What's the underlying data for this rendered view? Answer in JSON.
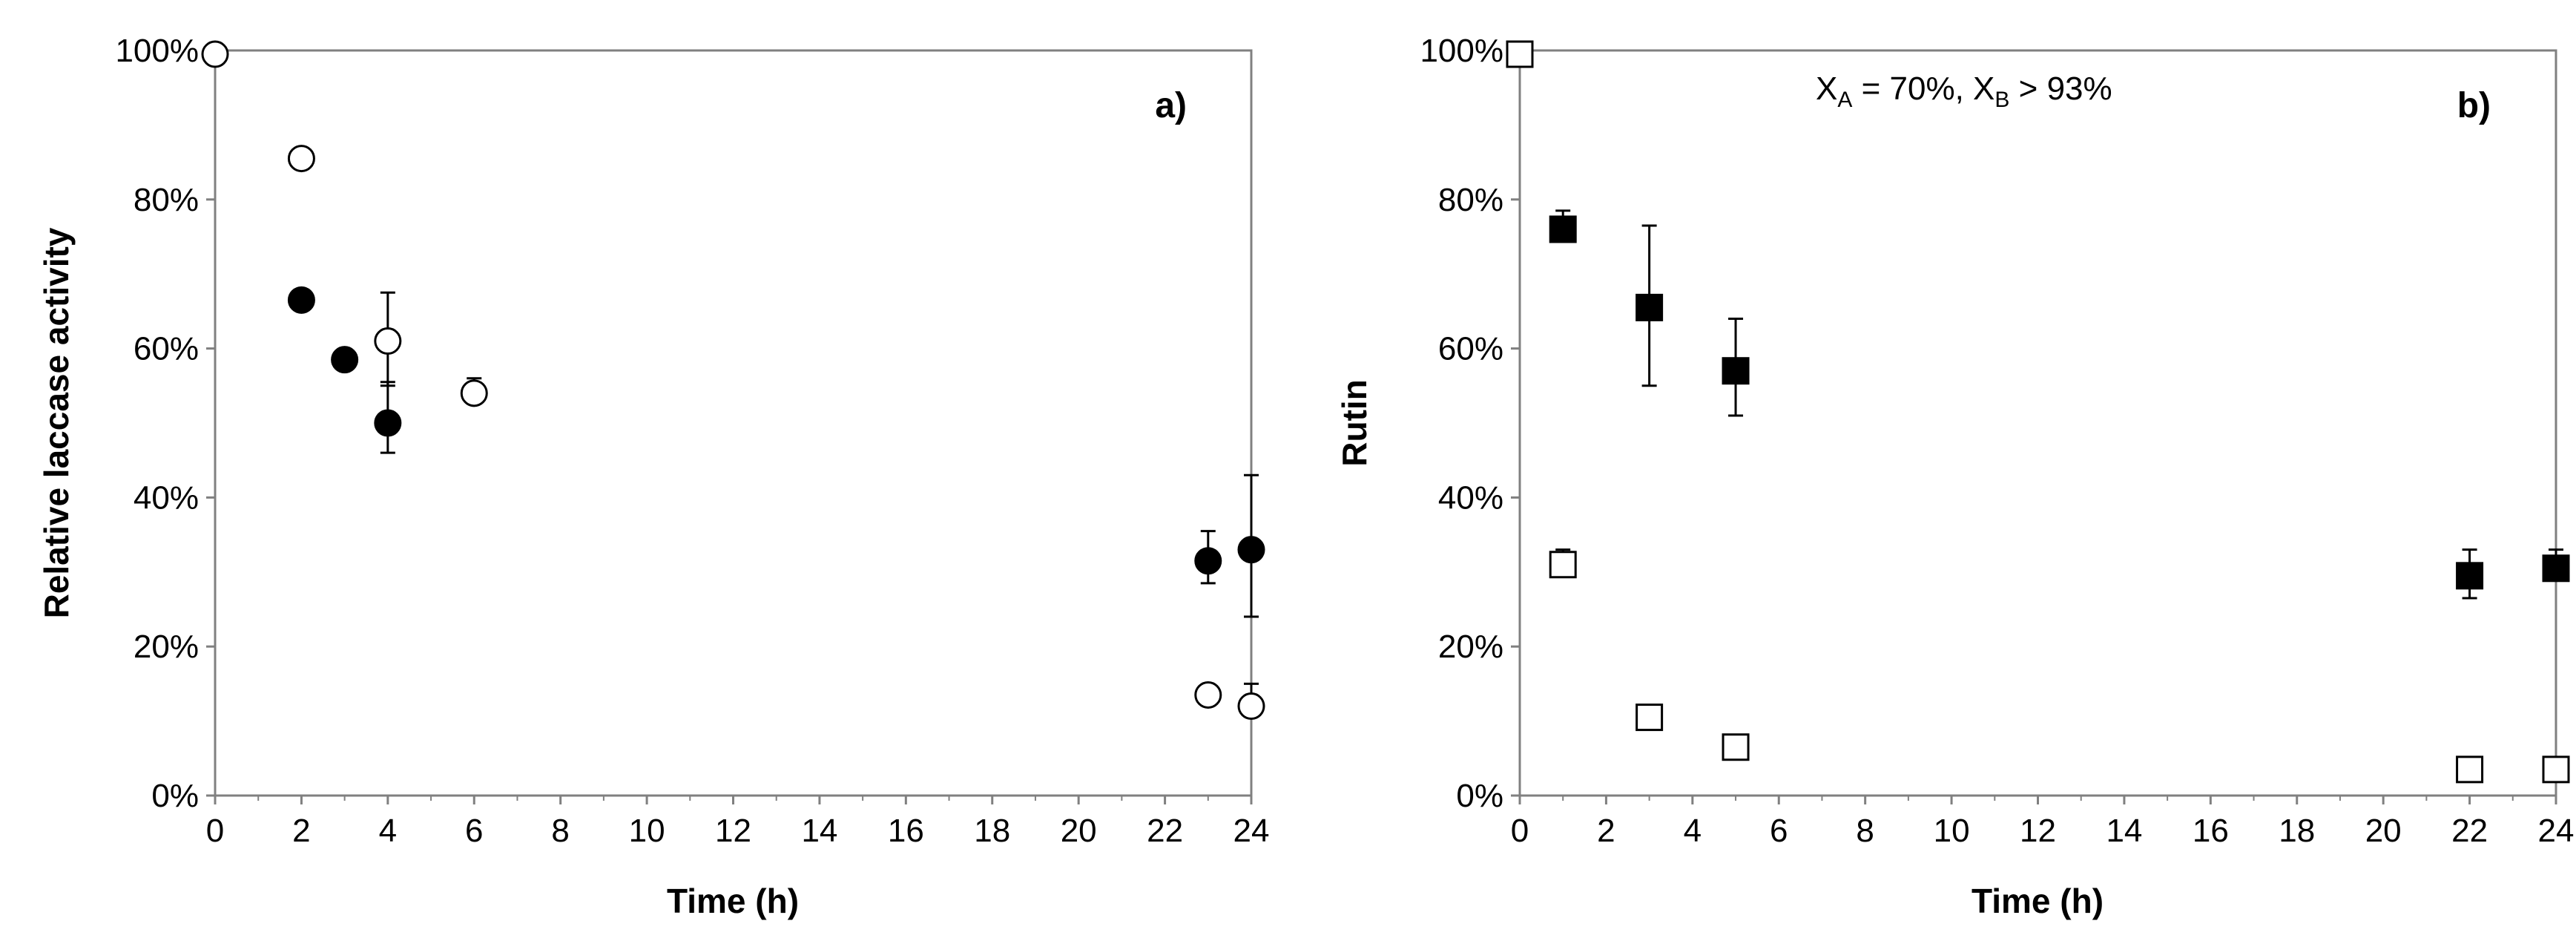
{
  "chart_data": [
    {
      "type": "scatter",
      "panel_label": "a)",
      "xlabel": "Time (h)",
      "ylabel": "Relative laccase activity",
      "xlim": [
        0,
        24
      ],
      "ylim": [
        0,
        100
      ],
      "x_ticks": [
        0,
        2,
        4,
        6,
        8,
        10,
        12,
        14,
        16,
        18,
        20,
        22,
        24
      ],
      "y_ticks": [
        0,
        20,
        40,
        60,
        80,
        100
      ],
      "y_tick_labels": [
        "0%",
        "20%",
        "40%",
        "60%",
        "80%",
        "100%"
      ],
      "grid": false,
      "series": [
        {
          "marker": "circle",
          "fill": "white",
          "points": [
            {
              "x": 0,
              "y": 99.5
            },
            {
              "x": 2,
              "y": 85.5
            },
            {
              "x": 4,
              "y": 61,
              "err_up": 6.5,
              "err_down": 6.0
            },
            {
              "x": 6,
              "y": 54,
              "err_up": 2.0,
              "err_down": 0
            },
            {
              "x": 23,
              "y": 13.5,
              "err_up": 0,
              "err_down": 0
            },
            {
              "x": 24,
              "y": 12,
              "err_up": 3.0,
              "err_down": 0
            }
          ]
        },
        {
          "marker": "circle",
          "fill": "black",
          "points": [
            {
              "x": 2,
              "y": 66.5,
              "err_up": 1.0,
              "err_down": 0
            },
            {
              "x": 3,
              "y": 58.5
            },
            {
              "x": 4,
              "y": 50,
              "err_up": 5.5,
              "err_down": 4.0
            },
            {
              "x": 23,
              "y": 31.5,
              "err_up": 4.0,
              "err_down": 3.0
            },
            {
              "x": 24,
              "y": 33,
              "err_up": 10.0,
              "err_down": 9.0
            }
          ]
        }
      ]
    },
    {
      "type": "scatter",
      "panel_label": "b)",
      "xlabel": "Time (h)",
      "ylabel": "Rutin",
      "annotation": {
        "text_a": "X",
        "sub_a": "A",
        "mid": " = 70%, ",
        "text_b": "X",
        "sub_b": "B",
        "end": " > 93%"
      },
      "xlim": [
        0,
        24
      ],
      "ylim": [
        0,
        100
      ],
      "x_ticks": [
        0,
        2,
        4,
        6,
        8,
        10,
        12,
        14,
        16,
        18,
        20,
        22,
        24
      ],
      "y_ticks": [
        0,
        20,
        40,
        60,
        80,
        100
      ],
      "y_tick_labels": [
        "0%",
        "20%",
        "40%",
        "60%",
        "80%",
        "100%"
      ],
      "grid": false,
      "series": [
        {
          "marker": "square",
          "fill": "black",
          "points": [
            {
              "x": 1,
              "y": 76,
              "err_up": 2.5,
              "err_down": 0
            },
            {
              "x": 3,
              "y": 65.5,
              "err_up": 11.0,
              "err_down": 10.5
            },
            {
              "x": 5,
              "y": 57,
              "err_up": 7.0,
              "err_down": 6.0
            },
            {
              "x": 22,
              "y": 29.5,
              "err_up": 3.5,
              "err_down": 3.0
            },
            {
              "x": 24,
              "y": 30.5,
              "err_up": 2.5,
              "err_down": 0
            }
          ]
        },
        {
          "marker": "square",
          "fill": "white",
          "points": [
            {
              "x": 0,
              "y": 99.5
            },
            {
              "x": 1,
              "y": 31,
              "err_up": 2.0,
              "err_down": 0
            },
            {
              "x": 3,
              "y": 10.5,
              "err_up": 1.0,
              "err_down": 0
            },
            {
              "x": 5,
              "y": 6.5
            },
            {
              "x": 22,
              "y": 3.5,
              "err_up": 0.5,
              "err_down": 0
            },
            {
              "x": 24,
              "y": 3.5,
              "err_up": 0.5,
              "err_down": 0
            }
          ]
        }
      ]
    }
  ]
}
